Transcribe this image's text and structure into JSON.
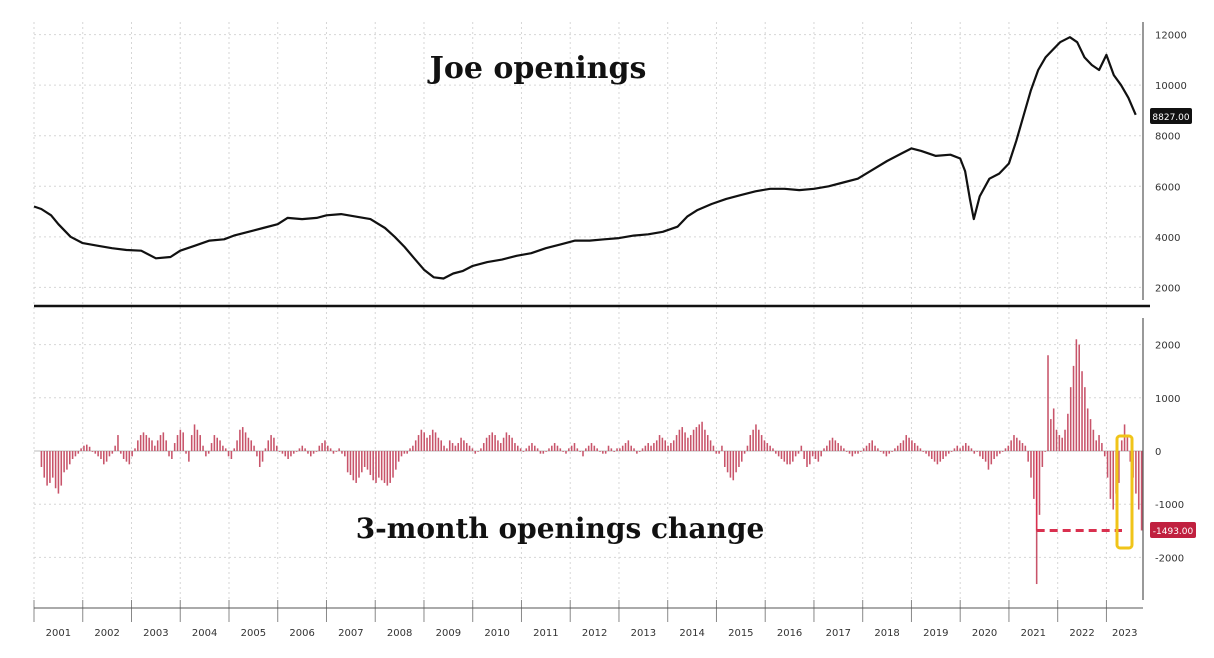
{
  "chart_data": [
    {
      "type": "line",
      "title": "Joe openings",
      "x_range": [
        2001.0,
        2023.75
      ],
      "ylim": [
        1500,
        12500
      ],
      "y_ticks": [
        2000,
        4000,
        6000,
        8000,
        10000,
        12000
      ],
      "y_tick_labels": [
        "2000",
        "4000",
        "6000",
        "8000",
        "10000",
        "12000"
      ],
      "last_value_label": "8827.00",
      "grid": true,
      "series": [
        {
          "values": [
            [
              2001.0,
              5200
            ],
            [
              2001.15,
              5100
            ],
            [
              2001.35,
              4850
            ],
            [
              2001.5,
              4500
            ],
            [
              2001.75,
              4000
            ],
            [
              2002.0,
              3750
            ],
            [
              2002.3,
              3650
            ],
            [
              2002.6,
              3550
            ],
            [
              2002.9,
              3480
            ],
            [
              2003.2,
              3450
            ],
            [
              2003.5,
              3150
            ],
            [
              2003.8,
              3200
            ],
            [
              2004.0,
              3450
            ],
            [
              2004.3,
              3650
            ],
            [
              2004.6,
              3850
            ],
            [
              2004.9,
              3900
            ],
            [
              2005.1,
              4050
            ],
            [
              2005.4,
              4200
            ],
            [
              2005.7,
              4350
            ],
            [
              2006.0,
              4500
            ],
            [
              2006.2,
              4750
            ],
            [
              2006.5,
              4700
            ],
            [
              2006.8,
              4750
            ],
            [
              2007.0,
              4850
            ],
            [
              2007.3,
              4900
            ],
            [
              2007.6,
              4800
            ],
            [
              2007.9,
              4700
            ],
            [
              2008.2,
              4350
            ],
            [
              2008.4,
              4000
            ],
            [
              2008.6,
              3600
            ],
            [
              2008.8,
              3150
            ],
            [
              2009.0,
              2700
            ],
            [
              2009.2,
              2400
            ],
            [
              2009.4,
              2350
            ],
            [
              2009.6,
              2550
            ],
            [
              2009.8,
              2650
            ],
            [
              2010.0,
              2850
            ],
            [
              2010.3,
              3000
            ],
            [
              2010.6,
              3100
            ],
            [
              2010.9,
              3250
            ],
            [
              2011.2,
              3350
            ],
            [
              2011.5,
              3550
            ],
            [
              2011.8,
              3700
            ],
            [
              2012.1,
              3850
            ],
            [
              2012.4,
              3850
            ],
            [
              2012.7,
              3900
            ],
            [
              2013.0,
              3950
            ],
            [
              2013.3,
              4050
            ],
            [
              2013.6,
              4100
            ],
            [
              2013.9,
              4200
            ],
            [
              2014.2,
              4400
            ],
            [
              2014.4,
              4800
            ],
            [
              2014.6,
              5050
            ],
            [
              2014.9,
              5300
            ],
            [
              2015.2,
              5500
            ],
            [
              2015.5,
              5650
            ],
            [
              2015.8,
              5800
            ],
            [
              2016.1,
              5900
            ],
            [
              2016.4,
              5900
            ],
            [
              2016.7,
              5850
            ],
            [
              2017.0,
              5900
            ],
            [
              2017.3,
              6000
            ],
            [
              2017.6,
              6150
            ],
            [
              2017.9,
              6300
            ],
            [
              2018.2,
              6650
            ],
            [
              2018.5,
              7000
            ],
            [
              2018.8,
              7300
            ],
            [
              2019.0,
              7500
            ],
            [
              2019.2,
              7400
            ],
            [
              2019.5,
              7200
            ],
            [
              2019.8,
              7250
            ],
            [
              2020.0,
              7100
            ],
            [
              2020.1,
              6600
            ],
            [
              2020.2,
              5500
            ],
            [
              2020.28,
              4700
            ],
            [
              2020.4,
              5600
            ],
            [
              2020.6,
              6300
            ],
            [
              2020.8,
              6500
            ],
            [
              2021.0,
              6900
            ],
            [
              2021.15,
              7800
            ],
            [
              2021.3,
              8800
            ],
            [
              2021.45,
              9800
            ],
            [
              2021.6,
              10600
            ],
            [
              2021.75,
              11100
            ],
            [
              2021.9,
              11400
            ],
            [
              2022.05,
              11700
            ],
            [
              2022.25,
              11900
            ],
            [
              2022.4,
              11700
            ],
            [
              2022.55,
              11100
            ],
            [
              2022.7,
              10800
            ],
            [
              2022.85,
              10600
            ],
            [
              2023.0,
              11200
            ],
            [
              2023.15,
              10400
            ],
            [
              2023.3,
              10000
            ],
            [
              2023.45,
              9500
            ],
            [
              2023.6,
              8827
            ]
          ]
        }
      ]
    },
    {
      "type": "bar",
      "title": "3-month openings change",
      "x_range": [
        2001.0,
        2023.75
      ],
      "ylim": [
        -2800,
        2500
      ],
      "y_ticks": [
        -2000,
        -1000,
        0,
        1000,
        2000
      ],
      "y_tick_labels": [
        "-2000",
        "-1000",
        "0",
        "1000",
        "2000"
      ],
      "last_value_label": "-1493.00",
      "reference_line": -1493,
      "grid": true,
      "color": "#c8546a",
      "series": [
        {
          "values": [
            -300,
            -500,
            -650,
            -600,
            -500,
            -700,
            -800,
            -650,
            -400,
            -350,
            -250,
            -150,
            -100,
            -50,
            50,
            100,
            120,
            80,
            0,
            -50,
            -100,
            -150,
            -250,
            -200,
            -100,
            -50,
            100,
            300,
            -50,
            -150,
            -200,
            -250,
            -100,
            50,
            200,
            300,
            350,
            300,
            250,
            200,
            100,
            200,
            300,
            350,
            200,
            -100,
            -150,
            150,
            300,
            400,
            350,
            -50,
            -200,
            300,
            500,
            400,
            300,
            100,
            -100,
            -50,
            150,
            300,
            250,
            200,
            100,
            50,
            -100,
            -150,
            50,
            200,
            400,
            450,
            350,
            250,
            200,
            100,
            -100,
            -300,
            -200,
            50,
            200,
            300,
            250,
            100,
            0,
            -50,
            -100,
            -150,
            -100,
            -50,
            0,
            50,
            100,
            50,
            -50,
            -100,
            -50,
            0,
            100,
            150,
            200,
            100,
            50,
            -50,
            0,
            50,
            -50,
            -100,
            -400,
            -450,
            -550,
            -600,
            -500,
            -400,
            -300,
            -350,
            -450,
            -550,
            -600,
            -500,
            -550,
            -600,
            -650,
            -600,
            -500,
            -350,
            -200,
            -100,
            -50,
            -50,
            50,
            100,
            200,
            300,
            400,
            350,
            250,
            300,
            400,
            350,
            250,
            200,
            100,
            50,
            200,
            150,
            100,
            150,
            250,
            200,
            150,
            100,
            50,
            -50,
            0,
            50,
            150,
            250,
            300,
            350,
            300,
            200,
            150,
            250,
            350,
            300,
            250,
            150,
            100,
            50,
            0,
            50,
            100,
            150,
            100,
            50,
            -50,
            -50,
            0,
            50,
            100,
            150,
            100,
            50,
            0,
            -50,
            50,
            100,
            150,
            50,
            0,
            -100,
            50,
            100,
            150,
            100,
            50,
            0,
            -50,
            -50,
            100,
            50,
            0,
            50,
            50,
            100,
            150,
            200,
            100,
            50,
            -50,
            0,
            50,
            100,
            150,
            100,
            150,
            200,
            300,
            250,
            200,
            100,
            150,
            200,
            300,
            400,
            450,
            350,
            250,
            300,
            400,
            450,
            500,
            550,
            400,
            300,
            200,
            100,
            -50,
            -50,
            100,
            -300,
            -400,
            -500,
            -550,
            -400,
            -300,
            -200,
            -50,
            100,
            300,
            400,
            500,
            400,
            300,
            200,
            150,
            100,
            50,
            -50,
            -100,
            -150,
            -200,
            -250,
            -250,
            -200,
            -100,
            -50,
            100,
            -150,
            -300,
            -250,
            -100,
            -150,
            -200,
            -100,
            50,
            100,
            200,
            250,
            200,
            150,
            100,
            50,
            0,
            -50,
            -100,
            -50,
            -50,
            0,
            50,
            100,
            150,
            200,
            100,
            50,
            0,
            -50,
            -100,
            -50,
            0,
            50,
            100,
            150,
            200,
            300,
            250,
            200,
            150,
            100,
            50,
            0,
            -50,
            -100,
            -150,
            -200,
            -250,
            -200,
            -150,
            -100,
            -50,
            0,
            50,
            100,
            50,
            100,
            150,
            100,
            50,
            -50,
            0,
            -100,
            -150,
            -200,
            -350,
            -250,
            -150,
            -100,
            -50,
            0,
            50,
            100,
            200,
            300,
            250,
            200,
            150,
            100,
            -200,
            -500,
            -900,
            -2500,
            -1200,
            -300,
            0,
            1800,
            600,
            800,
            400,
            300,
            250,
            400,
            700,
            1200,
            1600,
            2100,
            2000,
            1500,
            1200,
            800,
            600,
            400,
            200,
            300,
            150,
            -100,
            -500,
            -900,
            -1100,
            -800,
            -600,
            200,
            500,
            300,
            -200,
            -500,
            -800,
            -1100,
            -1493
          ]
        }
      ]
    }
  ],
  "x_axis": {
    "years": [
      "2001",
      "2002",
      "2003",
      "2004",
      "2005",
      "2006",
      "2007",
      "2008",
      "2009",
      "2010",
      "2011",
      "2012",
      "2013",
      "2014",
      "2015",
      "2016",
      "2017",
      "2018",
      "2019",
      "2020",
      "2021",
      "2022",
      "2023"
    ]
  },
  "colors": {
    "line": "#111111",
    "bars": "#c8546a",
    "reference_line": "#d9304f",
    "label_box": "#111111",
    "negative_label_box": "#c0203f",
    "highlight_box": "#f0c419",
    "grid": "#d6d6d6"
  }
}
